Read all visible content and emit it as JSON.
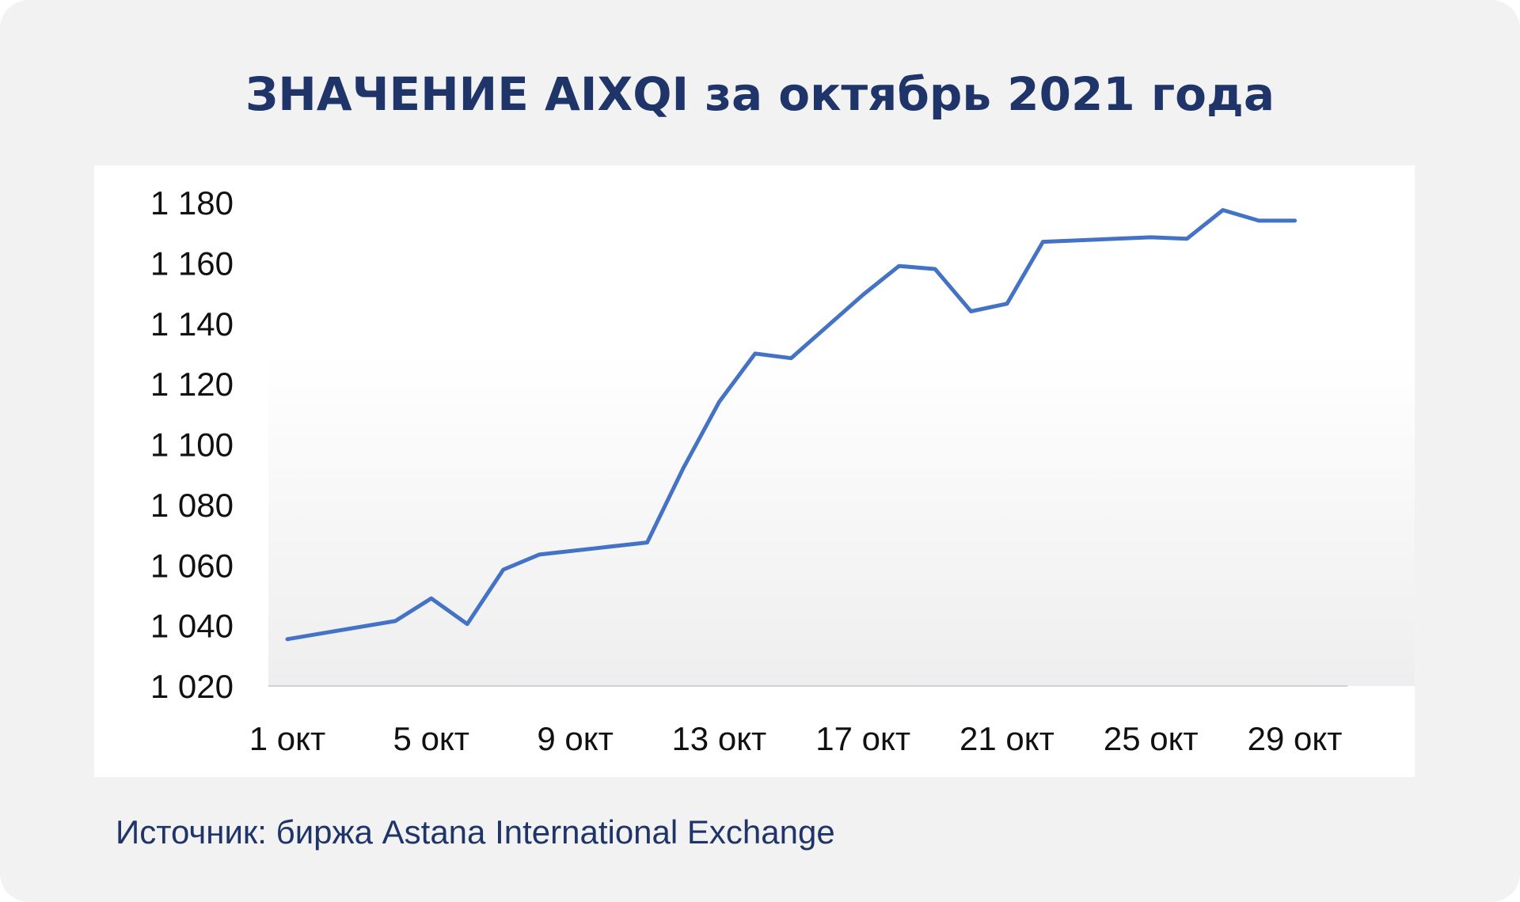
{
  "title": "ЗНАЧЕНИЕ AIXQI за октябрь 2021 года",
  "source": "Источник: биржа Astana International Exchange",
  "colors": {
    "background": "#f2f2f3",
    "panel": "#ffffff",
    "title": "#1f3468",
    "line": "#4472c4",
    "axis": "#d0d0d0"
  },
  "chart_data": {
    "type": "line",
    "title": "ЗНАЧЕНИЕ AIXQI за октябрь 2021 года",
    "xlabel": "",
    "ylabel": "",
    "ylim": [
      1020,
      1180
    ],
    "y_ticks": [
      1020,
      1040,
      1060,
      1080,
      1100,
      1120,
      1140,
      1160,
      1180
    ],
    "y_tick_labels": [
      "1 020",
      "1 040",
      "1 060",
      "1 080",
      "1 100",
      "1 120",
      "1 140",
      "1 160",
      "1 180"
    ],
    "x_tick_labels": [
      "1 окт",
      "5 окт",
      "9 окт",
      "13 окт",
      "17 окт",
      "21 окт",
      "25 окт",
      "29 окт"
    ],
    "x_tick_positions": [
      1,
      5,
      9,
      13,
      17,
      21,
      25,
      29
    ],
    "xlim": [
      1,
      30
    ],
    "grid": false,
    "legend": "none",
    "series": [
      {
        "x": [
          1,
          4,
          5,
          6,
          7,
          8,
          11,
          12,
          13,
          14,
          15,
          17,
          18,
          19,
          20,
          21,
          22,
          25,
          26,
          27,
          28,
          29
        ],
        "values": [
          1035.5,
          1041.5,
          1049,
          1040.5,
          1058.5,
          1063.5,
          1067.5,
          1092,
          1114,
          1130,
          1128.5,
          1149.5,
          1159,
          1158,
          1144,
          1146.5,
          1167,
          1168.5,
          1168,
          1177.5,
          1174,
          1174
        ]
      }
    ]
  }
}
